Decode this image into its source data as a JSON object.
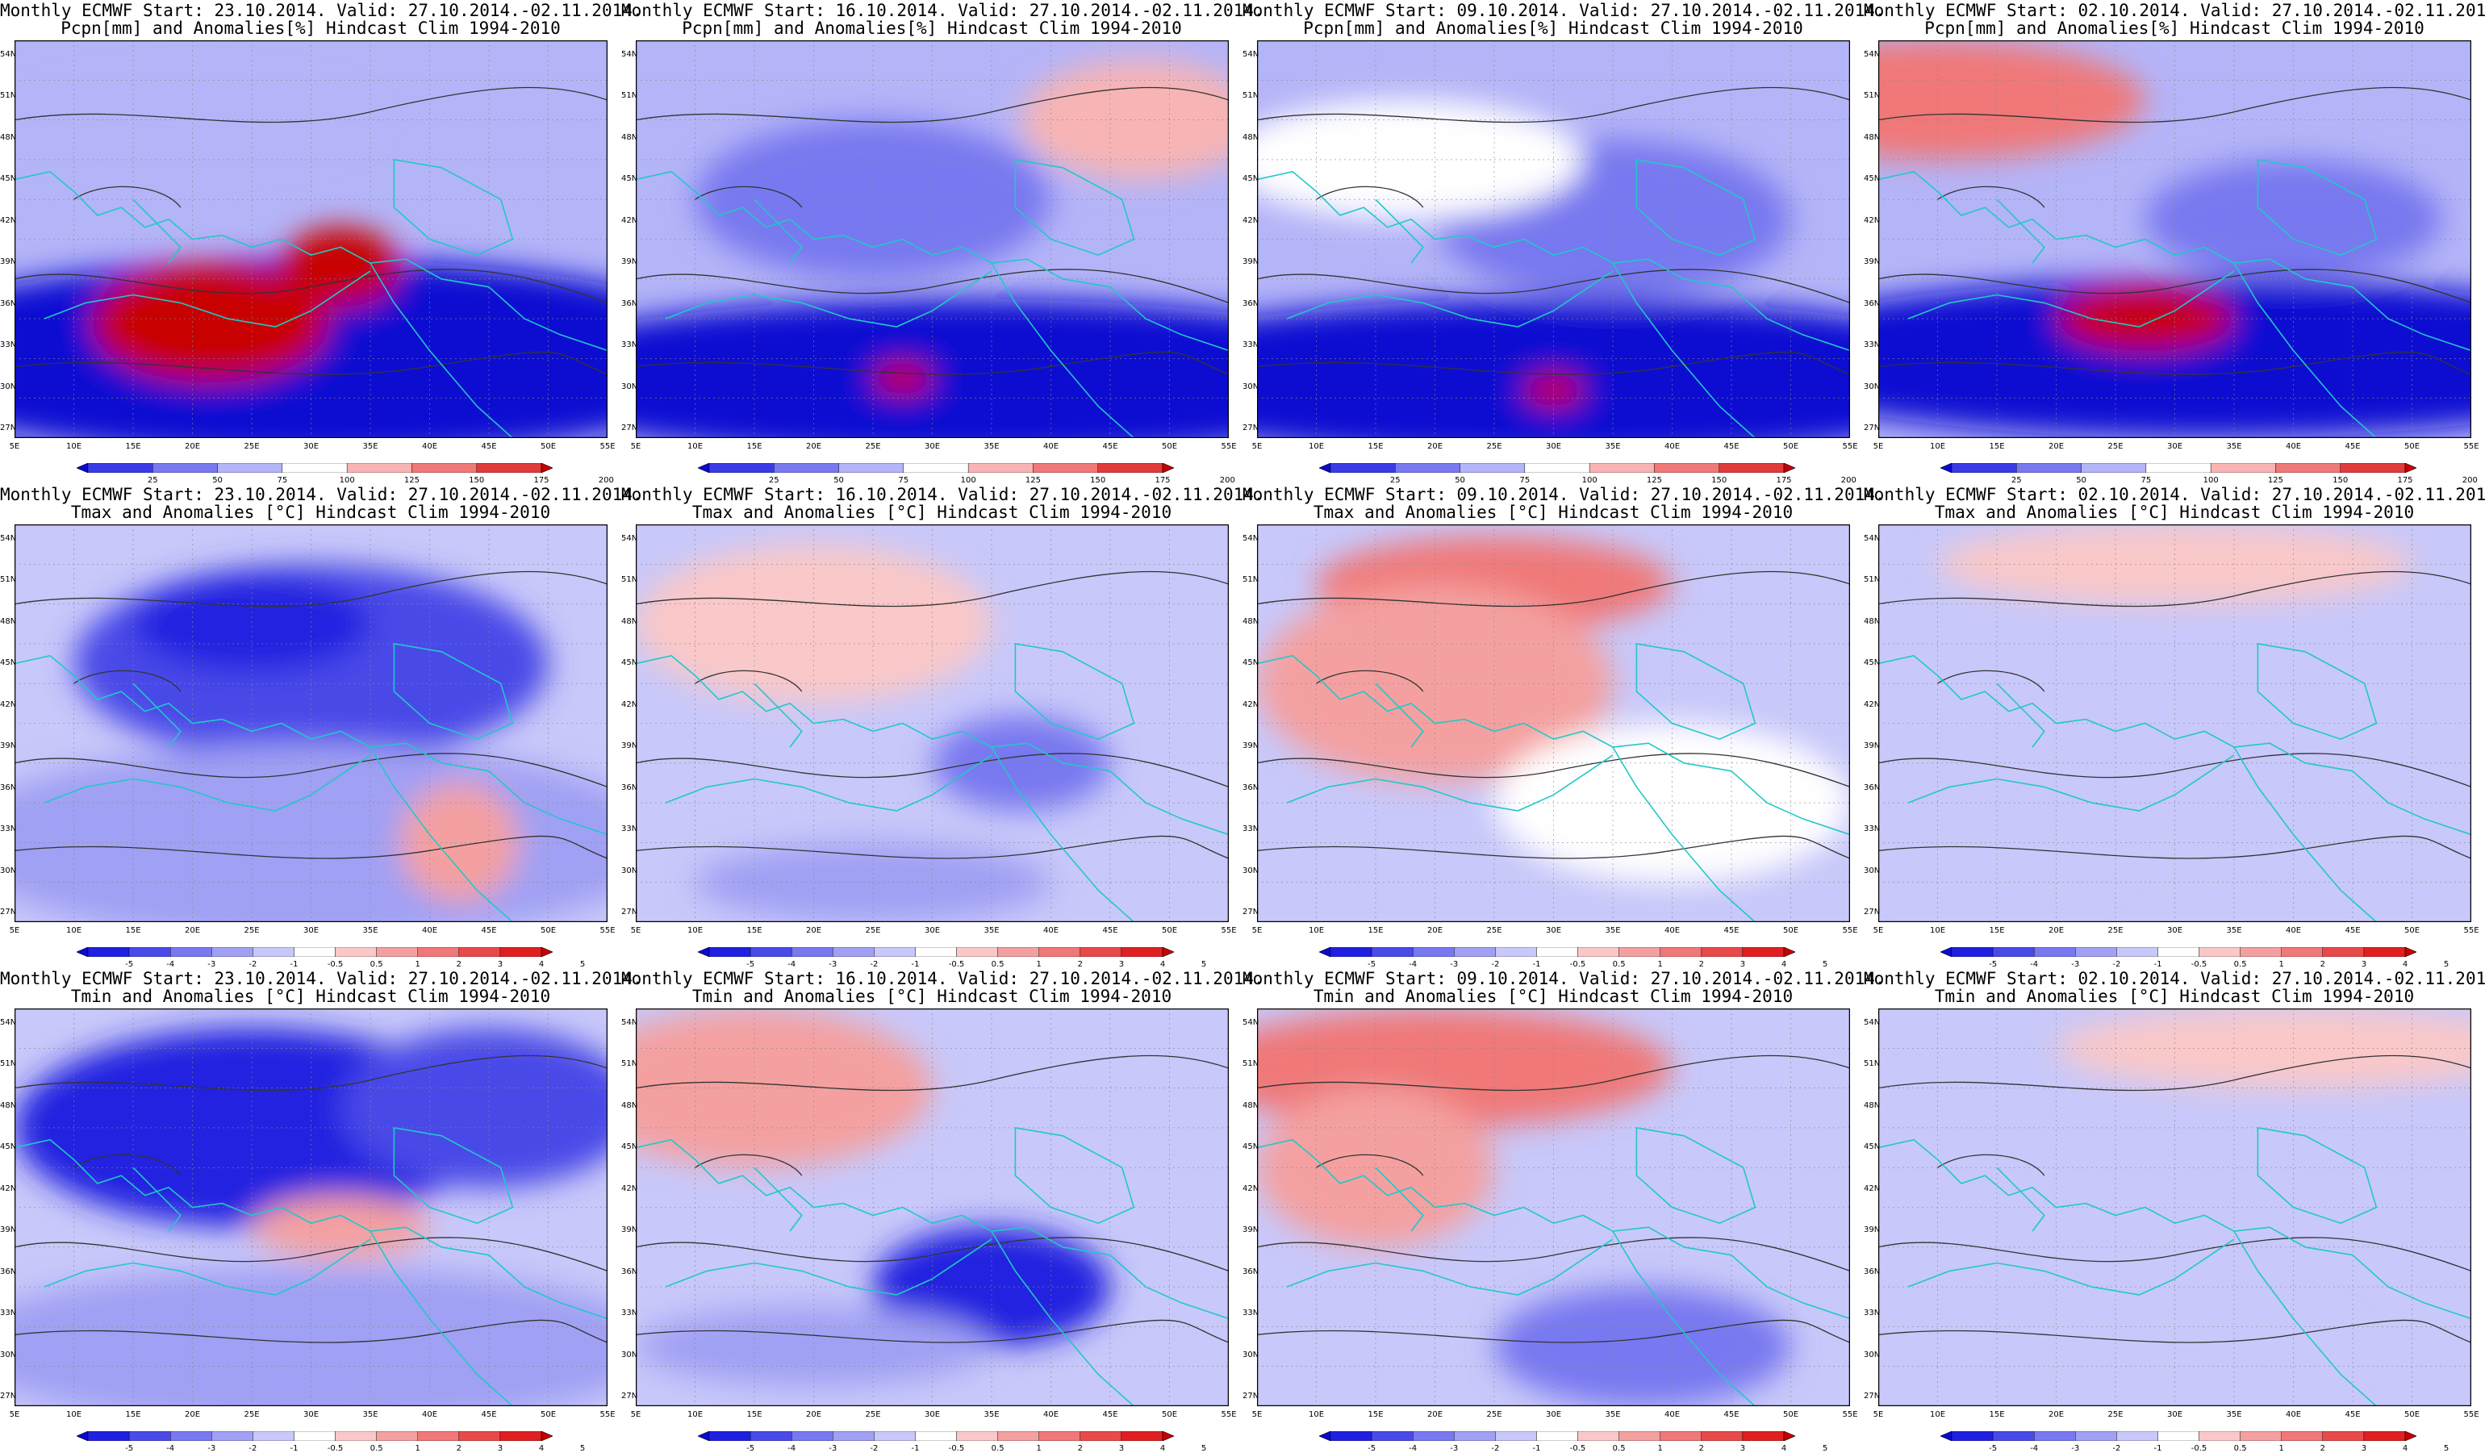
{
  "rows": [
    {
      "variable": "precip",
      "title_line2": "Pcpn[mm] and Anomalies[%] Hindcast Clim 1994-2010",
      "colorbar_labels": [
        "25",
        "50",
        "75",
        "100",
        "125",
        "150",
        "175",
        "200"
      ],
      "colors": [
        "#0a0ad2",
        "#3a3ae6",
        "#7878f0",
        "#b4b4f8",
        "#ffffff",
        "#f8b4b4",
        "#f07878",
        "#e03a3a",
        "#c80000"
      ]
    },
    {
      "variable": "tmax",
      "title_line2": "Tmax and Anomalies [°C] Hindcast Clim 1994-2010",
      "colorbar_labels": [
        "-5",
        "-4",
        "-3",
        "-2",
        "-1",
        "-0.5",
        "0.5",
        "1",
        "2",
        "3",
        "4",
        "5"
      ],
      "colors": [
        "#0a0ad2",
        "#2020e0",
        "#4a4ae8",
        "#7878f0",
        "#a0a0f4",
        "#c8c8fa",
        "#ffffff",
        "#fac8c8",
        "#f4a0a0",
        "#f07878",
        "#e84a4a",
        "#e02020",
        "#c80000"
      ]
    },
    {
      "variable": "tmin",
      "title_line2": "Tmin and Anomalies [°C] Hindcast Clim 1994-2010",
      "colorbar_labels": [
        "-5",
        "-4",
        "-3",
        "-2",
        "-1",
        "-0.5",
        "0.5",
        "1",
        "2",
        "3",
        "4",
        "5"
      ],
      "colors": [
        "#0a0ad2",
        "#2020e0",
        "#4a4ae8",
        "#7878f0",
        "#a0a0f4",
        "#c8c8fa",
        "#ffffff",
        "#fac8c8",
        "#f4a0a0",
        "#f07878",
        "#e84a4a",
        "#e02020",
        "#c80000"
      ]
    }
  ],
  "columns": [
    {
      "title_line1": "Monthly ECMWF Start: 23.10.2014. Valid: 27.10.2014.-02.11.2014."
    },
    {
      "title_line1": "Monthly ECMWF Start: 16.10.2014. Valid: 27.10.2014.-02.11.2014."
    },
    {
      "title_line1": "Monthly ECMWF Start: 09.10.2014. Valid: 27.10.2014.-02.11.2014."
    },
    {
      "title_line1": "Monthly ECMWF Start: 02.10.2014. Valid: 27.10.2014.-02.11.2014."
    }
  ],
  "panel_blobs": [
    [
      [
        [
          "#0a0ad2",
          0.5,
          0.8,
          0.75,
          0.25
        ],
        [
          "#c80000",
          0.33,
          0.71,
          0.2,
          0.15
        ],
        [
          "#c80000",
          0.55,
          0.57,
          0.1,
          0.1
        ],
        [
          "#b4b4f8",
          0.3,
          0.2,
          0.3,
          0.1
        ]
      ],
      [
        [
          "#0a0ad2",
          0.55,
          0.85,
          0.8,
          0.2
        ],
        [
          "#7878f0",
          0.4,
          0.4,
          0.3,
          0.2
        ],
        [
          "#f8b4b4",
          0.85,
          0.2,
          0.2,
          0.15
        ],
        [
          "#c80000",
          0.45,
          0.85,
          0.05,
          0.04
        ]
      ],
      [
        [
          "#0a0ad2",
          0.5,
          0.85,
          0.8,
          0.2
        ],
        [
          "#7878f0",
          0.6,
          0.45,
          0.3,
          0.2
        ],
        [
          "#ffffff",
          0.25,
          0.3,
          0.3,
          0.15
        ],
        [
          "#c80000",
          0.5,
          0.88,
          0.05,
          0.04
        ]
      ],
      [
        [
          "#0a0ad2",
          0.55,
          0.8,
          0.8,
          0.2
        ],
        [
          "#f07878",
          0.1,
          0.15,
          0.35,
          0.15
        ],
        [
          "#7878f0",
          0.7,
          0.45,
          0.25,
          0.15
        ],
        [
          "#c80000",
          0.45,
          0.7,
          0.15,
          0.08
        ]
      ]
    ],
    [
      [
        [
          "#4a4ae8",
          0.5,
          0.35,
          0.4,
          0.25
        ],
        [
          "#2020e0",
          0.4,
          0.25,
          0.2,
          0.12
        ],
        [
          "#a0a0f4",
          0.5,
          0.8,
          0.6,
          0.25
        ],
        [
          "#f4a0a0",
          0.75,
          0.8,
          0.1,
          0.15
        ]
      ],
      [
        [
          "#fac8c8",
          0.3,
          0.25,
          0.3,
          0.2
        ],
        [
          "#7878f0",
          0.65,
          0.6,
          0.15,
          0.12
        ],
        [
          "#a0a0f4",
          0.4,
          0.9,
          0.3,
          0.1
        ]
      ],
      [
        [
          "#f07878",
          0.4,
          0.15,
          0.3,
          0.12
        ],
        [
          "#f4a0a0",
          0.3,
          0.4,
          0.3,
          0.25
        ],
        [
          "#ffffff",
          0.7,
          0.7,
          0.3,
          0.2
        ]
      ],
      [
        [
          "#fac8c8",
          0.5,
          0.1,
          0.4,
          0.1
        ],
        [
          "#c8c8fa",
          0.2,
          0.85,
          0.2,
          0.1
        ]
      ]
    ],
    [
      [
        [
          "#2020e0",
          0.4,
          0.3,
          0.4,
          0.25
        ],
        [
          "#4a4ae8",
          0.8,
          0.25,
          0.25,
          0.2
        ],
        [
          "#f4a0a0",
          0.55,
          0.55,
          0.15,
          0.08
        ],
        [
          "#a0a0f4",
          0.5,
          0.85,
          0.6,
          0.2
        ]
      ],
      [
        [
          "#f4a0a0",
          0.2,
          0.2,
          0.3,
          0.2
        ],
        [
          "#2020e0",
          0.6,
          0.7,
          0.2,
          0.15
        ],
        [
          "#a0a0f4",
          0.3,
          0.85,
          0.3,
          0.1
        ]
      ],
      [
        [
          "#f07878",
          0.3,
          0.15,
          0.4,
          0.15
        ],
        [
          "#f4a0a0",
          0.2,
          0.4,
          0.2,
          0.2
        ],
        [
          "#7878f0",
          0.65,
          0.85,
          0.25,
          0.15
        ]
      ],
      [
        [
          "#fac8c8",
          0.7,
          0.1,
          0.4,
          0.1
        ],
        [
          "#c8c8fa",
          0.4,
          0.85,
          0.4,
          0.15
        ]
      ]
    ]
  ],
  "map": {
    "lat_labels": [
      "54N",
      "51N",
      "48N",
      "45N",
      "42N",
      "39N",
      "36N",
      "33N",
      "30N",
      "27N"
    ],
    "lon_labels": [
      "5E",
      "10E",
      "15E",
      "20E",
      "25E",
      "30E",
      "35E",
      "40E",
      "45E",
      "50E",
      "55E"
    ]
  }
}
